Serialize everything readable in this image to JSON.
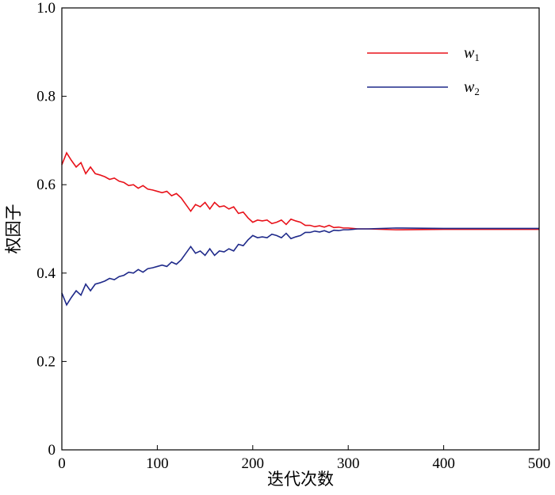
{
  "chart_data": {
    "type": "line",
    "title": "",
    "xlabel": "迭代次数",
    "ylabel": "权因子",
    "xlim": [
      0,
      500
    ],
    "ylim": [
      0,
      1
    ],
    "xticks": [
      "0",
      "100",
      "200",
      "300",
      "400",
      "500"
    ],
    "yticks": [
      "0",
      "0.2",
      "0.4",
      "0.6",
      "0.8",
      "1.0"
    ],
    "legend_position": "top-right",
    "x": [
      0,
      5,
      10,
      15,
      20,
      25,
      30,
      35,
      40,
      45,
      50,
      55,
      60,
      65,
      70,
      75,
      80,
      85,
      90,
      95,
      100,
      105,
      110,
      115,
      120,
      125,
      130,
      135,
      140,
      145,
      150,
      155,
      160,
      165,
      170,
      175,
      180,
      185,
      190,
      195,
      200,
      205,
      210,
      215,
      220,
      225,
      230,
      235,
      240,
      245,
      250,
      255,
      260,
      265,
      270,
      275,
      280,
      285,
      290,
      295,
      300,
      305,
      310,
      315,
      320,
      350,
      400,
      450,
      500
    ],
    "series": [
      {
        "name": "w",
        "sub": "1",
        "color": "#e8121a",
        "values": [
          0.645,
          0.672,
          0.655,
          0.64,
          0.65,
          0.625,
          0.64,
          0.625,
          0.622,
          0.618,
          0.612,
          0.615,
          0.608,
          0.605,
          0.598,
          0.6,
          0.592,
          0.598,
          0.59,
          0.588,
          0.585,
          0.582,
          0.585,
          0.575,
          0.58,
          0.57,
          0.555,
          0.54,
          0.555,
          0.55,
          0.56,
          0.545,
          0.56,
          0.55,
          0.552,
          0.545,
          0.55,
          0.535,
          0.538,
          0.525,
          0.515,
          0.52,
          0.518,
          0.52,
          0.512,
          0.515,
          0.52,
          0.51,
          0.522,
          0.518,
          0.515,
          0.508,
          0.508,
          0.505,
          0.507,
          0.504,
          0.508,
          0.503,
          0.504,
          0.502,
          0.502,
          0.501,
          0.5,
          0.5,
          0.5,
          0.498,
          0.499,
          0.499,
          0.499
        ]
      },
      {
        "name": "w",
        "sub": "2",
        "color": "#1f2a8a",
        "values": [
          0.355,
          0.328,
          0.345,
          0.36,
          0.35,
          0.375,
          0.36,
          0.375,
          0.378,
          0.382,
          0.388,
          0.385,
          0.392,
          0.395,
          0.402,
          0.4,
          0.408,
          0.402,
          0.41,
          0.412,
          0.415,
          0.418,
          0.415,
          0.425,
          0.42,
          0.43,
          0.445,
          0.46,
          0.445,
          0.45,
          0.44,
          0.455,
          0.44,
          0.45,
          0.448,
          0.455,
          0.45,
          0.465,
          0.462,
          0.475,
          0.485,
          0.48,
          0.482,
          0.48,
          0.488,
          0.485,
          0.48,
          0.49,
          0.478,
          0.482,
          0.485,
          0.492,
          0.492,
          0.495,
          0.493,
          0.496,
          0.492,
          0.497,
          0.496,
          0.498,
          0.498,
          0.499,
          0.5,
          0.5,
          0.5,
          0.502,
          0.501,
          0.501,
          0.501
        ]
      }
    ]
  }
}
